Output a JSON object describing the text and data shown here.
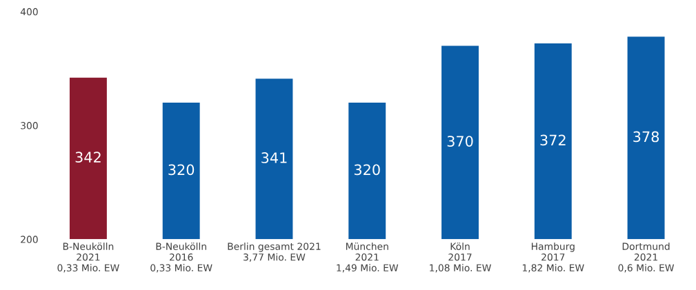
{
  "chart_data": {
    "type": "bar",
    "categories": [
      "B-Neukölln\n2021\n0,33 Mio. EW",
      "B-Neukölln\n2016\n0,33 Mio. EW",
      "Berlin gesamt 2021\n3,77 Mio. EW",
      "München\n2021\n1,49 Mio. EW",
      "Köln\n2017\n1,08 Mio. EW",
      "Hamburg\n2017\n1,82 Mio. EW",
      "Dortmund\n2021\n0,6 Mio. EW"
    ],
    "values": [
      342,
      320,
      341,
      320,
      370,
      372,
      378
    ],
    "colors": [
      "#8b1a2e",
      "#0b5ea8",
      "#0b5ea8",
      "#0b5ea8",
      "#0b5ea8",
      "#0b5ea8",
      "#0b5ea8"
    ],
    "ylim": [
      200,
      400
    ],
    "yticks": [
      200,
      300,
      400
    ],
    "data_labels": true,
    "grid": false,
    "legend": false
  }
}
